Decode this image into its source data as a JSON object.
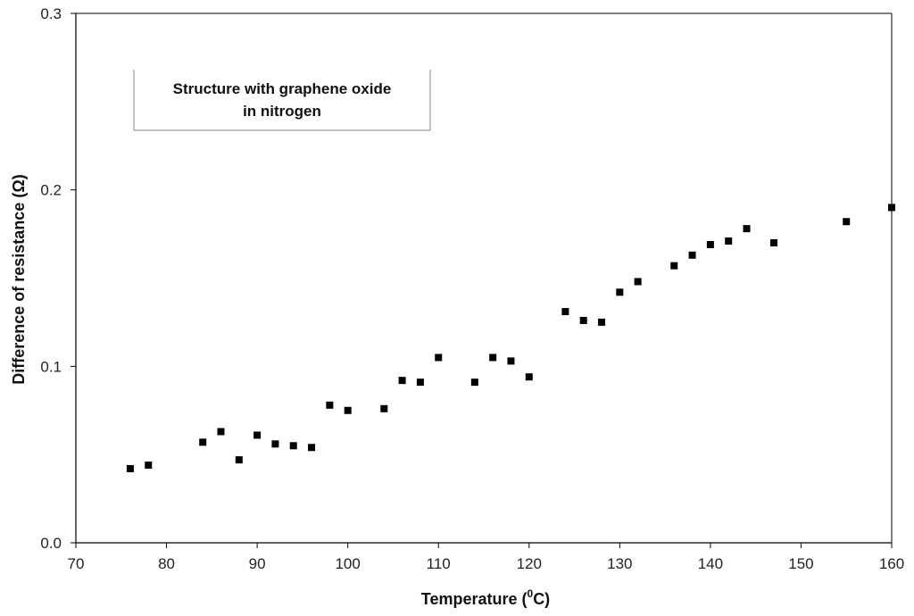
{
  "chart_data": {
    "type": "scatter",
    "title": "",
    "annotation_lines": [
      "Structure with graphene oxide",
      "in nitrogen"
    ],
    "xlabel": "Temperature (",
    "xlabel_sup": "0",
    "xlabel_tail": "C)",
    "ylabel": "Difference of resistance (Ω)",
    "xlim": [
      70,
      160
    ],
    "ylim": [
      0.0,
      0.3
    ],
    "x_ticks": [
      70,
      80,
      90,
      100,
      110,
      120,
      130,
      140,
      150,
      160
    ],
    "y_ticks": [
      0.0,
      0.1,
      0.2,
      0.3
    ],
    "y_tick_labels": [
      "0.0",
      "0.1",
      "0.2",
      "0.3"
    ],
    "grid": false,
    "marker": "square",
    "marker_color": "#000000",
    "series": [
      {
        "x": [
          76,
          78,
          84,
          86,
          88,
          90,
          92,
          94,
          96,
          98,
          100,
          104,
          106,
          108,
          110,
          114,
          116,
          118,
          120,
          124,
          126,
          128,
          130,
          132,
          136,
          138,
          140,
          142,
          144,
          147,
          155,
          160
        ],
        "y": [
          0.042,
          0.044,
          0.057,
          0.063,
          0.047,
          0.061,
          0.056,
          0.055,
          0.054,
          0.078,
          0.075,
          0.076,
          0.092,
          0.091,
          0.105,
          0.091,
          0.105,
          0.103,
          0.094,
          0.131,
          0.126,
          0.125,
          0.142,
          0.148,
          0.157,
          0.163,
          0.169,
          0.171,
          0.178,
          0.17,
          0.182,
          0.19
        ]
      }
    ]
  }
}
